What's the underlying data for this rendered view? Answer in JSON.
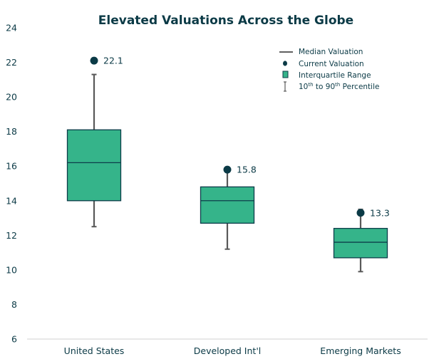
{
  "chart_data": {
    "type": "boxplot",
    "title": "Elevated Valuations Across the Globe",
    "xlabel": "",
    "ylabel": "",
    "ylim": [
      6,
      24
    ],
    "yticks": [
      6,
      8,
      10,
      12,
      14,
      16,
      18,
      20,
      22,
      24
    ],
    "grid": false,
    "legend_position": "top-right",
    "categories": [
      "United States",
      "Developed Int'l",
      "Emerging Markets"
    ],
    "series": [
      {
        "name": "United States",
        "p10": 12.5,
        "q1": 14.0,
        "median": 16.2,
        "q3": 18.1,
        "p90": 21.3,
        "current": 22.1,
        "current_label": "22.1"
      },
      {
        "name": "Developed Int'l",
        "p10": 11.2,
        "q1": 12.7,
        "median": 14.0,
        "q3": 14.8,
        "p90": 15.7,
        "current": 15.8,
        "current_label": "15.8"
      },
      {
        "name": "Emerging Markets",
        "p10": 9.9,
        "q1": 10.7,
        "median": 11.6,
        "q3": 12.4,
        "p90": 13.5,
        "current": 13.3,
        "current_label": "13.3"
      }
    ],
    "legend": [
      {
        "label": "Median Valuation",
        "icon": "line"
      },
      {
        "label": "Current Valuation",
        "icon": "dot"
      },
      {
        "label": "Interquartile Range",
        "icon": "square"
      },
      {
        "label_parts": [
          "10",
          "th",
          " to 90",
          "th",
          " Percentile"
        ],
        "icon": "whisker"
      }
    ],
    "colors": {
      "box_fill": "#35b48a",
      "box_stroke": "#0d3d4a",
      "whisker": "#595959",
      "dot": "#0b3a46",
      "axis": "#d9d9d9",
      "text": "#0b3a46"
    }
  }
}
